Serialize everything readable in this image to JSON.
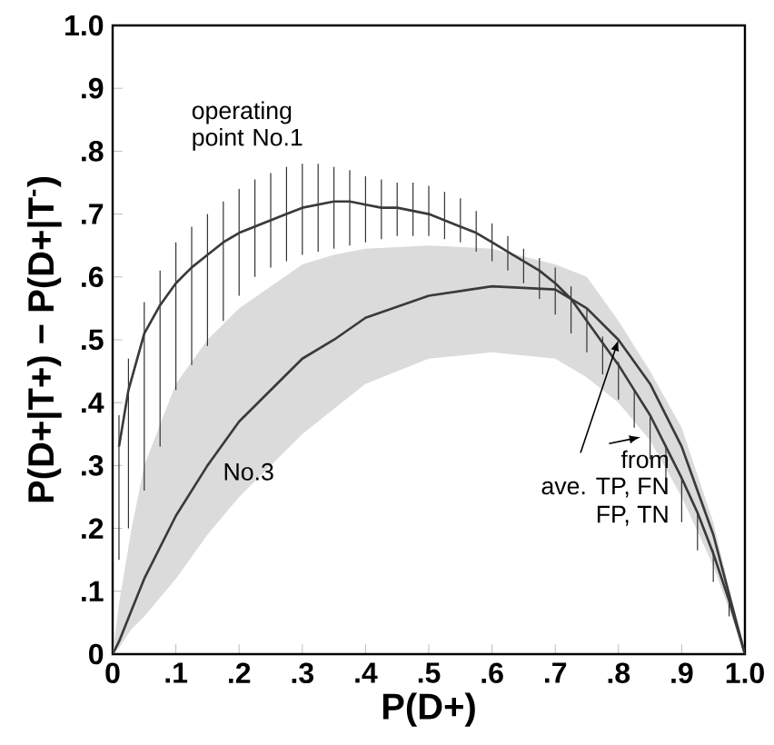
{
  "chart_data": {
    "type": "line",
    "xlabel": "P(D+)",
    "ylabel": "P(D+|T+) − P(D+|T$^{-}$)",
    "xlim": [
      0,
      1.0
    ],
    "ylim": [
      0,
      1.0
    ],
    "xticks": [
      0,
      {
        "value": 0.1,
        "label": ".1"
      },
      {
        "value": 0.2,
        "label": ".2"
      },
      {
        "value": 0.3,
        "label": ".3"
      },
      {
        "value": 0.4,
        "label": ".4"
      },
      {
        "value": 0.5,
        "label": ".5"
      },
      {
        "value": 0.6,
        "label": ".6"
      },
      {
        "value": 0.7,
        "label": ".7"
      },
      {
        "value": 0.8,
        "label": ".8"
      },
      {
        "value": 0.9,
        "label": ".9"
      },
      {
        "value": 1.0,
        "label": "1.0"
      }
    ],
    "yticks": [
      0,
      {
        "value": 0.1,
        "label": ".1"
      },
      {
        "value": 0.2,
        "label": ".2"
      },
      {
        "value": 0.3,
        "label": ".3"
      },
      {
        "value": 0.4,
        "label": ".4"
      },
      {
        "value": 0.5,
        "label": ".5"
      },
      {
        "value": 0.6,
        "label": ".6"
      },
      {
        "value": 0.7,
        "label": ".7"
      },
      {
        "value": 0.8,
        "label": ".8"
      },
      {
        "value": 0.9,
        "label": ".9"
      },
      {
        "value": 1.0,
        "label": "1.0"
      }
    ],
    "series": [
      {
        "name": "operating point No.1",
        "color": "#3a3a3a",
        "x": [
          0.01,
          0.025,
          0.05,
          0.075,
          0.1,
          0.125,
          0.15,
          0.175,
          0.2,
          0.225,
          0.25,
          0.275,
          0.3,
          0.325,
          0.35,
          0.375,
          0.4,
          0.425,
          0.45,
          0.475,
          0.5,
          0.525,
          0.55,
          0.575,
          0.6,
          0.625,
          0.65,
          0.675,
          0.7,
          0.725,
          0.75,
          0.775,
          0.8,
          0.825,
          0.85,
          0.875,
          0.9,
          0.925,
          0.95,
          0.975,
          1.0
        ],
        "values": [
          0.33,
          0.42,
          0.51,
          0.555,
          0.59,
          0.615,
          0.635,
          0.655,
          0.67,
          0.68,
          0.69,
          0.7,
          0.71,
          0.715,
          0.72,
          0.72,
          0.715,
          0.71,
          0.71,
          0.705,
          0.7,
          0.69,
          0.68,
          0.67,
          0.655,
          0.64,
          0.625,
          0.61,
          0.59,
          0.565,
          0.53,
          0.495,
          0.46,
          0.42,
          0.38,
          0.33,
          0.28,
          0.225,
          0.16,
          0.085,
          0
        ],
        "errors": [
          [
            0.15,
            0.38
          ],
          [
            0.2,
            0.47
          ],
          [
            0.26,
            0.56
          ],
          [
            0.33,
            0.61
          ],
          [
            0.42,
            0.655
          ],
          [
            0.46,
            0.68
          ],
          [
            0.49,
            0.7
          ],
          [
            0.53,
            0.72
          ],
          [
            0.57,
            0.74
          ],
          [
            0.6,
            0.755
          ],
          [
            0.615,
            0.765
          ],
          [
            0.625,
            0.775
          ],
          [
            0.635,
            0.78
          ],
          [
            0.64,
            0.78
          ],
          [
            0.645,
            0.775
          ],
          [
            0.65,
            0.77
          ],
          [
            0.655,
            0.76
          ],
          [
            0.66,
            0.755
          ],
          [
            0.665,
            0.75
          ],
          [
            0.665,
            0.75
          ],
          [
            0.665,
            0.745
          ],
          [
            0.66,
            0.735
          ],
          [
            0.655,
            0.725
          ],
          [
            0.64,
            0.705
          ],
          [
            0.625,
            0.685
          ],
          [
            0.61,
            0.665
          ],
          [
            0.59,
            0.645
          ],
          [
            0.565,
            0.63
          ],
          [
            0.54,
            0.615
          ],
          [
            0.51,
            0.585
          ],
          [
            0.48,
            0.55
          ],
          [
            0.445,
            0.505
          ],
          [
            0.405,
            0.465
          ],
          [
            0.36,
            0.42
          ],
          [
            0.31,
            0.38
          ],
          [
            0.26,
            0.33
          ],
          [
            0.21,
            0.28
          ],
          [
            0.165,
            0.225
          ],
          [
            0.115,
            0.165
          ],
          [
            0.06,
            0.085
          ],
          null
        ]
      },
      {
        "name": "No.3",
        "color": "#3a3a3a",
        "x": [
          0,
          0.01,
          0.03,
          0.05,
          0.1,
          0.15,
          0.2,
          0.3,
          0.35,
          0.4,
          0.5,
          0.6,
          0.7,
          0.75,
          0.8,
          0.85,
          0.9,
          0.95,
          1.0
        ],
        "values": [
          0,
          0.02,
          0.07,
          0.12,
          0.22,
          0.3,
          0.37,
          0.47,
          0.5,
          0.535,
          0.57,
          0.585,
          0.58,
          0.55,
          0.5,
          0.43,
          0.33,
          0.19,
          0
        ],
        "upper": [
          0,
          0.08,
          0.2,
          0.3,
          0.43,
          0.5,
          0.55,
          0.62,
          0.635,
          0.645,
          0.65,
          0.645,
          0.62,
          0.6,
          0.53,
          0.45,
          0.36,
          0.21,
          0
        ],
        "lower": [
          0,
          0.01,
          0.04,
          0.06,
          0.12,
          0.19,
          0.25,
          0.35,
          0.39,
          0.43,
          0.47,
          0.48,
          0.47,
          0.44,
          0.4,
          0.34,
          0.25,
          0.14,
          0
        ]
      }
    ],
    "annotations": [
      "from",
      {
        "text": "ave. TP, FN",
        "x": 0.8,
        "y": 0.5
      },
      "FP, TN"
    ]
  }
}
